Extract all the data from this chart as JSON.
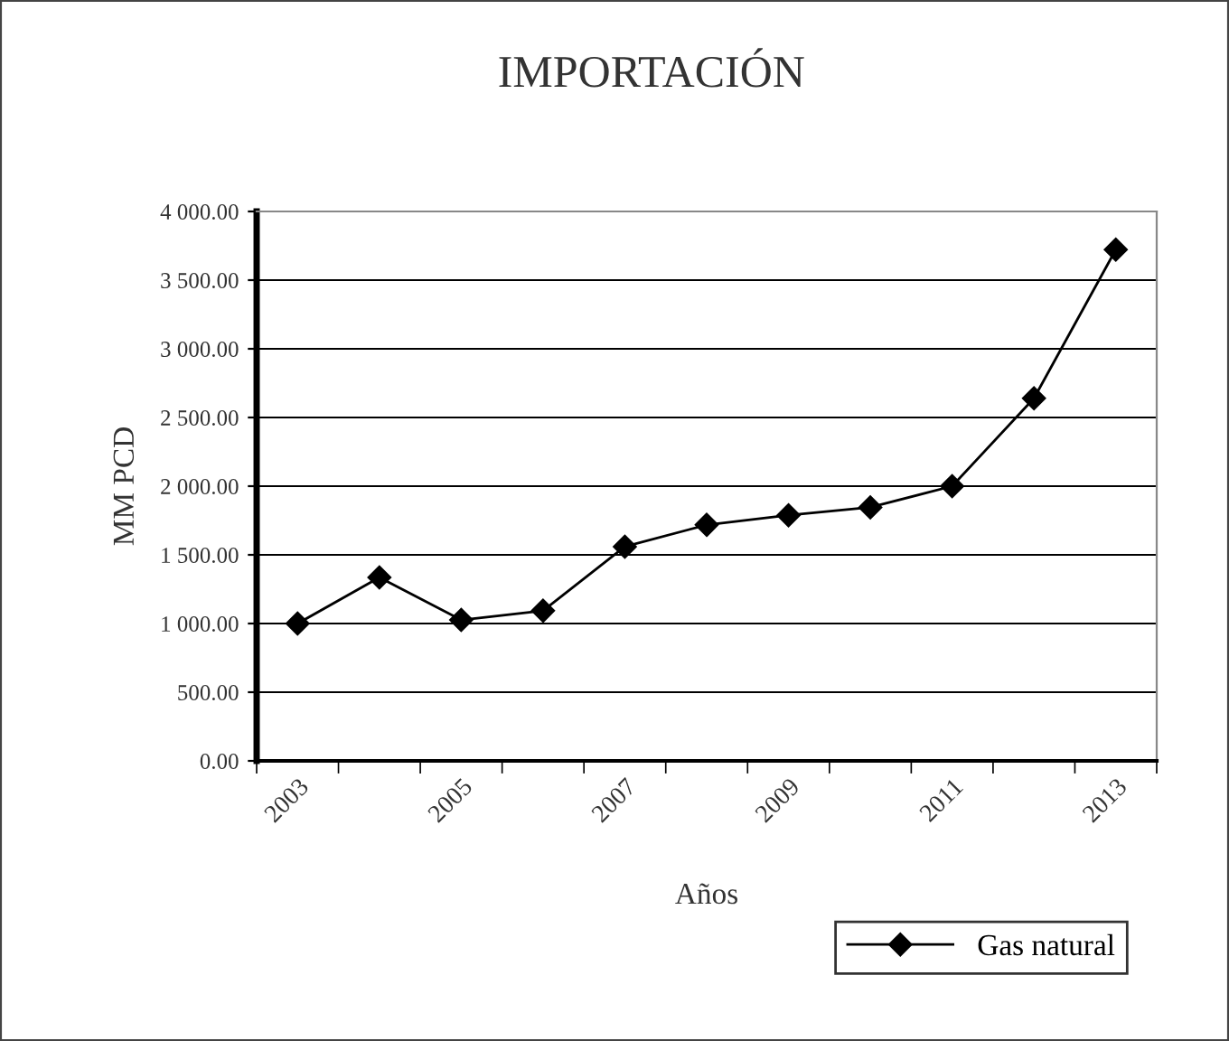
{
  "chart_data": {
    "type": "line",
    "title": "IMPORTACIÓN",
    "xlabel": "Años",
    "ylabel": "MM PCD",
    "categories": [
      "2003",
      null,
      "2005",
      null,
      "2007",
      null,
      "2009",
      null,
      "2011",
      null,
      "2013"
    ],
    "series": [
      {
        "name": "Gas natural",
        "color": "#000000",
        "values": [
          1000,
          1335,
          1026,
          1093,
          1560,
          1718,
          1788,
          1846,
          2000,
          2640,
          3722
        ]
      }
    ],
    "ylim": [
      0,
      4000
    ],
    "yticks": [
      {
        "value": 0,
        "label": "0.00"
      },
      {
        "value": 500,
        "label": "500.00"
      },
      {
        "value": 1000,
        "label": "1 000.00"
      },
      {
        "value": 1500,
        "label": "1 500.00"
      },
      {
        "value": 2000,
        "label": "2 000.00"
      },
      {
        "value": 2500,
        "label": "2 500.00"
      },
      {
        "value": 3000,
        "label": "3 000.00"
      },
      {
        "value": 3500,
        "label": "3 500.00"
      },
      {
        "value": 4000,
        "label": "4 000.00"
      }
    ],
    "grid": "y",
    "legend": "bottom right",
    "marker": "diamond",
    "line_style": "solid"
  }
}
